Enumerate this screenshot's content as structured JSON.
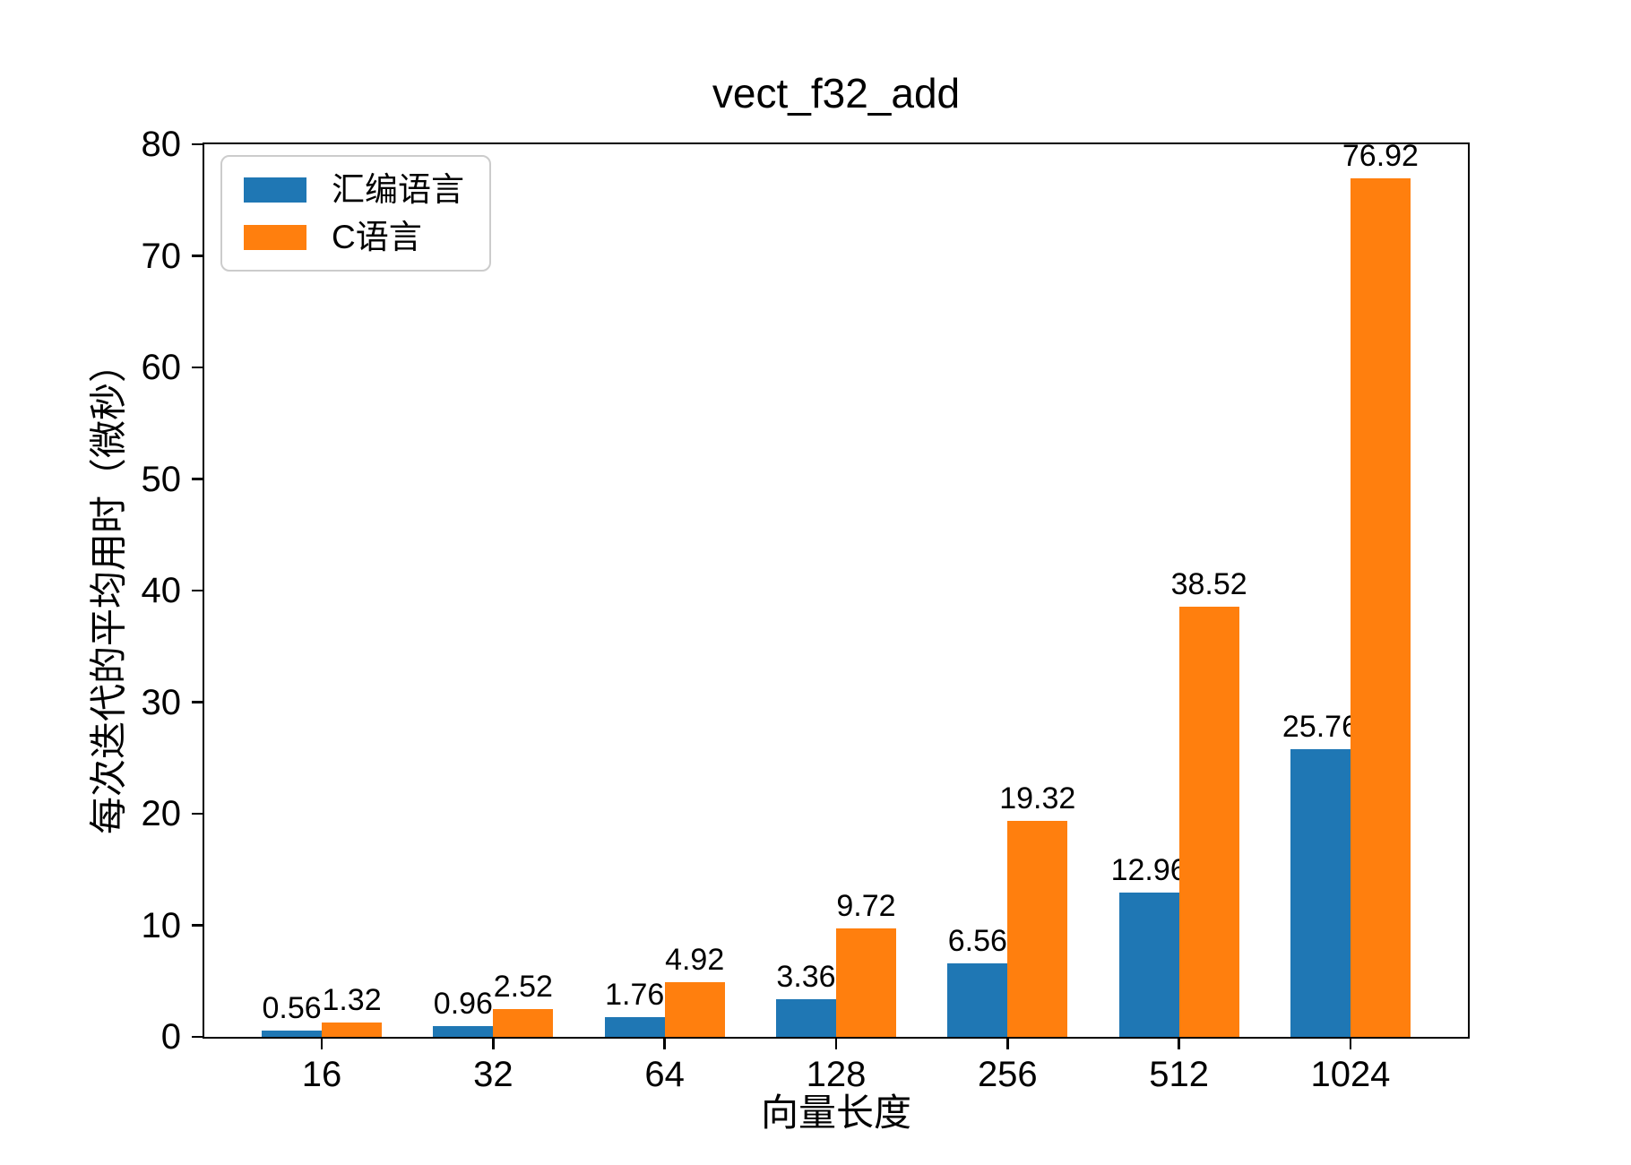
{
  "chart_data": {
    "type": "bar",
    "title": "vect_f32_add",
    "xlabel": "向量长度",
    "ylabel": "每次迭代的平均用时（微秒）",
    "categories": [
      "16",
      "32",
      "64",
      "128",
      "256",
      "512",
      "1024"
    ],
    "series": [
      {
        "name": "汇编语言",
        "color": "#1f77b4",
        "values": [
          0.56,
          0.96,
          1.76,
          3.36,
          6.56,
          12.96,
          25.76
        ]
      },
      {
        "name": "C语言",
        "color": "#ff7f0e",
        "values": [
          1.32,
          2.52,
          4.92,
          9.72,
          19.32,
          38.52,
          76.92
        ]
      }
    ],
    "value_labels": {
      "汇编语言": [
        "0.56",
        "0.96",
        "1.76",
        "3.36",
        "6.56",
        "12.96",
        "25.76"
      ],
      "C语言": [
        "1.32",
        "2.52",
        "4.92",
        "9.72",
        "19.32",
        "38.52",
        "76.92"
      ]
    },
    "ylim": [
      0,
      80
    ],
    "yticks": [
      0,
      10,
      20,
      30,
      40,
      50,
      60,
      70,
      80
    ],
    "x_range": [
      -0.685,
      6.685
    ],
    "bar_width": 0.35,
    "grid": false,
    "legend_position": "upper-left",
    "axis_color": "#000000",
    "text_color": "#000000",
    "background_color": "#ffffff"
  }
}
